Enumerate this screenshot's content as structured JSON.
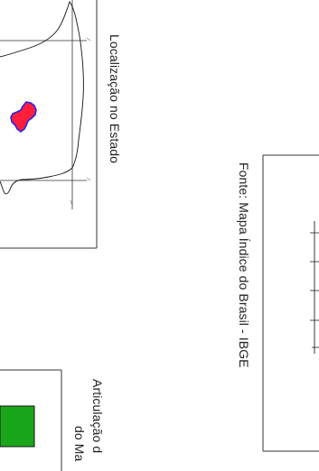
{
  "location_panel": {
    "title": "Localização no Estado"
  },
  "source": {
    "text": "Fonte: Mapa Índice do Brasil - IBGE"
  },
  "articulation_panel": {
    "title_line1": "Articulação d",
    "title_line2": "do Ma"
  },
  "colors": {
    "study_area_fill": "#ff1f3d",
    "study_area_outline": "#2424e6",
    "sheet_fill": "#1aa61a",
    "frame": "#333333",
    "state_outline": "#111111"
  }
}
